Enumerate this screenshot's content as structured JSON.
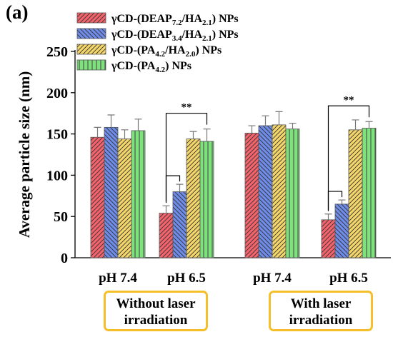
{
  "panel_label": "(a)",
  "chart_data": {
    "type": "bar",
    "ylabel": "Average particle size (nm)",
    "ylim": [
      0,
      250
    ],
    "yticks": [
      0,
      50,
      100,
      150,
      200,
      250
    ],
    "categories": [
      "pH 7.4",
      "pH 6.5",
      "pH 7.4",
      "pH 6.5"
    ],
    "groups": [
      {
        "lines": [
          "Without laser",
          "irradiation"
        ],
        "categories": [
          0,
          1
        ]
      },
      {
        "lines": [
          "With laser",
          "irradiation"
        ],
        "categories": [
          2,
          3
        ]
      }
    ],
    "series": [
      {
        "legend": {
          "parts": [
            [
              "γCD-(DEAP",
              "n"
            ],
            [
              "7.2",
              "sub"
            ],
            [
              "/HA",
              "n"
            ],
            [
              "2.1",
              "sub"
            ],
            [
              ") NPs",
              "n"
            ]
          ]
        },
        "color": "#f4636b",
        "hatch": "/",
        "values": [
          146,
          54,
          151,
          46
        ],
        "errors": [
          12,
          9,
          9,
          7
        ]
      },
      {
        "legend": {
          "parts": [
            [
              "γCD-(DEAP",
              "n"
            ],
            [
              "3.4",
              "sub"
            ],
            [
              "/HA",
              "n"
            ],
            [
              "2.1",
              "sub"
            ],
            [
              ") NPs",
              "n"
            ]
          ]
        },
        "color": "#6e8ce8",
        "hatch": "\\",
        "values": [
          158,
          80,
          160,
          65
        ],
        "errors": [
          15,
          9,
          12,
          5
        ]
      },
      {
        "legend": {
          "parts": [
            [
              "γCD-(PA",
              "n"
            ],
            [
              "4.2",
              "sub"
            ],
            [
              "/HA",
              "n"
            ],
            [
              "2.0",
              "sub"
            ],
            [
              ") NPs",
              "n"
            ]
          ]
        },
        "color": "#f5d66b",
        "hatch": "/",
        "values": [
          144,
          144,
          161,
          155
        ],
        "errors": [
          11,
          9,
          16,
          12
        ]
      },
      {
        "legend": {
          "parts": [
            [
              "γCD-(PA",
              "n"
            ],
            [
              "4.2",
              "sub"
            ],
            [
              ") NPs",
              "n"
            ]
          ]
        },
        "color": "#7fe07e",
        "hatch": "|",
        "values": [
          154,
          141,
          156,
          157
        ],
        "errors": [
          14,
          15,
          7,
          8
        ]
      }
    ],
    "significance": [
      {
        "category": 1,
        "outer": [
          0,
          3
        ],
        "inner": [
          0,
          1
        ],
        "label": "**"
      },
      {
        "category": 3,
        "outer": [
          0,
          3
        ],
        "inner": [
          0,
          1
        ],
        "label": "**"
      }
    ]
  }
}
